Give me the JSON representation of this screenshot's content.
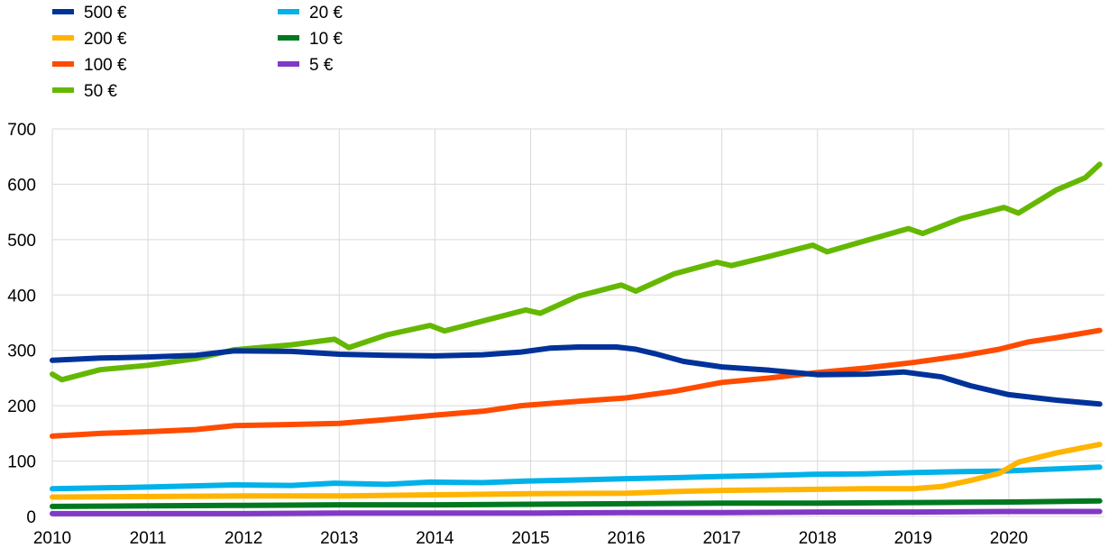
{
  "chart_data": {
    "type": "line",
    "title": "",
    "xlabel": "",
    "ylabel": "",
    "ylim": [
      0,
      700
    ],
    "yticks": [
      0,
      100,
      200,
      300,
      400,
      500,
      600,
      700
    ],
    "xlim": [
      2010,
      2021
    ],
    "xticks": [
      "2010",
      "2011",
      "2012",
      "2013",
      "2014",
      "2015",
      "2016",
      "2017",
      "2018",
      "2019",
      "2020"
    ],
    "grid": true,
    "legend_position": "top-left",
    "series": [
      {
        "name": "500 €",
        "color": "#003299",
        "x": [
          2010,
          2010.5,
          2011,
          2011.5,
          2011.9,
          2012.5,
          2013,
          2013.5,
          2014,
          2014.5,
          2014.9,
          2015.2,
          2015.5,
          2015.9,
          2016.1,
          2016.3,
          2016.6,
          2017,
          2017.5,
          2018,
          2018.5,
          2018.9,
          2019.3,
          2019.6,
          2020,
          2020.5,
          2020.95
        ],
        "values": [
          282,
          286,
          288,
          291,
          299,
          298,
          293,
          291,
          290,
          292,
          297,
          304,
          306,
          306,
          302,
          294,
          280,
          270,
          264,
          256,
          257,
          261,
          252,
          236,
          220,
          210,
          203
        ]
      },
      {
        "name": "200 €",
        "color": "#ffb400",
        "x": [
          2010,
          2011,
          2012,
          2013,
          2014,
          2015,
          2016,
          2016.5,
          2017,
          2017.5,
          2018,
          2018.5,
          2019,
          2019.3,
          2019.6,
          2019.9,
          2020.1,
          2020.5,
          2020.95
        ],
        "values": [
          35,
          36,
          37,
          37,
          39,
          41,
          42,
          45,
          47,
          48,
          49,
          50,
          50,
          54,
          65,
          78,
          98,
          115,
          130
        ]
      },
      {
        "name": "100 €",
        "color": "#ff4b00",
        "x": [
          2010,
          2010.5,
          2011,
          2011.5,
          2011.9,
          2012.5,
          2013,
          2013.5,
          2014,
          2014.5,
          2014.9,
          2015.5,
          2016,
          2016.5,
          2017,
          2017.5,
          2018,
          2018.5,
          2019,
          2019.5,
          2019.9,
          2020.2,
          2020.5,
          2020.95
        ],
        "values": [
          145,
          150,
          153,
          157,
          164,
          166,
          168,
          175,
          183,
          190,
          200,
          208,
          214,
          226,
          242,
          250,
          260,
          268,
          278,
          290,
          302,
          315,
          323,
          336
        ]
      },
      {
        "name": "50 €",
        "color": "#65b800",
        "x": [
          2010,
          2010.1,
          2010.5,
          2011,
          2011.5,
          2011.9,
          2012.5,
          2012.95,
          2013.1,
          2013.5,
          2013.95,
          2014.1,
          2014.5,
          2014.95,
          2015.1,
          2015.5,
          2015.95,
          2016.1,
          2016.5,
          2016.95,
          2017.1,
          2017.5,
          2017.95,
          2018.1,
          2018.5,
          2018.95,
          2019.1,
          2019.5,
          2019.95,
          2020.1,
          2020.5,
          2020.8,
          2020.95
        ],
        "values": [
          257,
          247,
          265,
          273,
          285,
          301,
          310,
          320,
          305,
          328,
          345,
          335,
          353,
          373,
          367,
          398,
          418,
          407,
          438,
          459,
          453,
          470,
          490,
          478,
          498,
          520,
          511,
          538,
          558,
          548,
          590,
          612,
          636
        ]
      },
      {
        "name": "20 €",
        "color": "#00b1ea",
        "x": [
          2010,
          2011,
          2011.9,
          2012.5,
          2012.95,
          2013.5,
          2013.95,
          2014.5,
          2014.95,
          2015.5,
          2015.95,
          2016.5,
          2016.95,
          2017.5,
          2017.95,
          2018.5,
          2018.95,
          2019.5,
          2019.95,
          2020.5,
          2020.95
        ],
        "values": [
          50,
          53,
          57,
          56,
          60,
          58,
          62,
          61,
          64,
          66,
          68,
          70,
          72,
          74,
          76,
          77,
          79,
          81,
          82,
          86,
          89
        ]
      },
      {
        "name": "10 €",
        "color": "#00781f",
        "x": [
          2010,
          2011,
          2012,
          2013,
          2014,
          2015,
          2016,
          2017,
          2018,
          2019,
          2020,
          2020.95
        ],
        "values": [
          18,
          19,
          20,
          21,
          21,
          22,
          23,
          24,
          24,
          25,
          26,
          28
        ]
      },
      {
        "name": "5 €",
        "color": "#8139c6",
        "x": [
          2010,
          2011,
          2012,
          2013,
          2014,
          2015,
          2016,
          2017,
          2018,
          2019,
          2020,
          2020.95
        ],
        "values": [
          5,
          5,
          5,
          6,
          6,
          6,
          7,
          7,
          8,
          8,
          9,
          9
        ]
      }
    ]
  }
}
